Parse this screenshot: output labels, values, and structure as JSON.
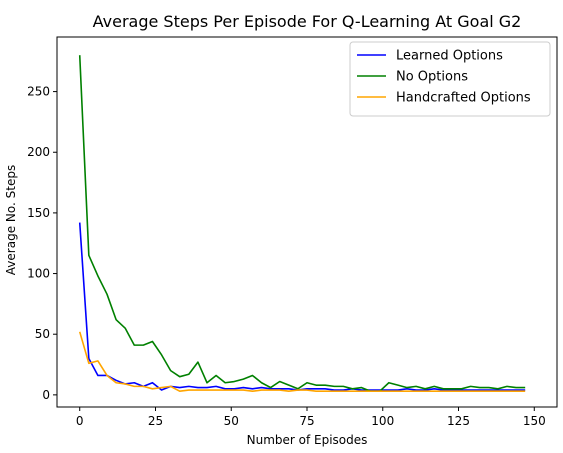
{
  "chart_data": {
    "type": "line",
    "title": "Average Steps Per Episode For Q-Learning At Goal G2",
    "xlabel": "Number of Episodes",
    "ylabel": "Average No. Steps",
    "xlim": [
      -7.5,
      157.5
    ],
    "ylim": [
      -10,
      295
    ],
    "xticks": [
      0,
      25,
      50,
      75,
      100,
      125,
      150
    ],
    "yticks": [
      0,
      50,
      100,
      150,
      200,
      250
    ],
    "grid": false,
    "legend_position": "top-right",
    "x": [
      0,
      3,
      6,
      9,
      12,
      15,
      18,
      21,
      24,
      27,
      30,
      33,
      36,
      39,
      42,
      45,
      48,
      51,
      54,
      57,
      60,
      63,
      66,
      69,
      72,
      75,
      78,
      81,
      84,
      87,
      90,
      93,
      96,
      99,
      102,
      105,
      108,
      111,
      114,
      117,
      120,
      123,
      126,
      129,
      132,
      135,
      138,
      141,
      144,
      147
    ],
    "series": [
      {
        "name": "Learned Options",
        "color": "#0000ff",
        "values": [
          142,
          30,
          16,
          16,
          12,
          9,
          10,
          7,
          10,
          4,
          7,
          6,
          7,
          6,
          6,
          7,
          5,
          5,
          6,
          5,
          6,
          5,
          5,
          5,
          4,
          5,
          5,
          5,
          4,
          4,
          5,
          4,
          4,
          4,
          4,
          4,
          5,
          4,
          4,
          5,
          4,
          4,
          4,
          4,
          4,
          4,
          4,
          4,
          4,
          4
        ]
      },
      {
        "name": "No Options",
        "color": "#008000",
        "values": [
          280,
          115,
          98,
          83,
          62,
          55,
          41,
          41,
          44,
          33,
          20,
          15,
          17,
          27,
          10,
          16,
          10,
          11,
          13,
          16,
          10,
          6,
          11,
          8,
          5,
          10,
          8,
          8,
          7,
          7,
          5,
          6,
          3,
          3,
          10,
          8,
          6,
          7,
          5,
          7,
          5,
          5,
          5,
          7,
          6,
          6,
          5,
          7,
          6,
          6
        ]
      },
      {
        "name": "Handcrafted Options",
        "color": "#ffa500",
        "values": [
          52,
          26,
          28,
          16,
          10,
          9,
          7,
          7,
          5,
          6,
          7,
          3,
          4,
          4,
          4,
          4,
          4,
          4,
          4,
          3,
          4,
          4,
          4,
          3,
          4,
          4,
          3,
          3,
          3,
          3,
          3,
          3,
          3,
          3,
          3,
          3,
          3,
          3,
          3,
          3,
          3,
          3,
          3,
          3,
          3,
          3,
          3,
          3,
          3,
          3
        ]
      }
    ]
  }
}
